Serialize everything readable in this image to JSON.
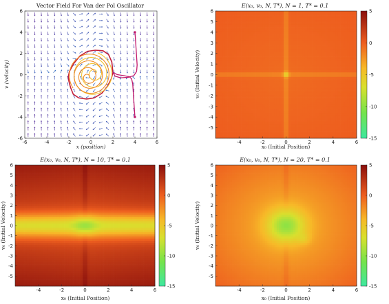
{
  "chart_data": [
    {
      "type": "vector-field",
      "title": "Vector Field For Van der Pol Oscillator",
      "xlabel": "x (position)",
      "ylabel": "v (velocity)",
      "xlim": [
        -6,
        6
      ],
      "ylim": [
        -6,
        6
      ],
      "xticks": [
        -6,
        -4,
        -2,
        0,
        2,
        4,
        6
      ],
      "yticks": [
        -6,
        -4,
        -2,
        0,
        2,
        4,
        6
      ],
      "grid": false,
      "limit_cycle": {
        "x": [
          2.0,
          1.9,
          1.6,
          1.1,
          0.4,
          -0.3,
          -1.0,
          -1.55,
          -1.95,
          -2.05,
          -2.0,
          -1.85,
          -1.6,
          -1.1,
          -0.4,
          0.3,
          1.0,
          1.5,
          1.85,
          2.0
        ],
        "y": [
          0.2,
          1.2,
          1.9,
          2.25,
          2.3,
          2.2,
          1.75,
          1.05,
          0.3,
          -0.2,
          -0.6,
          -1.2,
          -1.85,
          -2.2,
          -2.3,
          -2.2,
          -1.75,
          -1.1,
          -0.4,
          0.2
        ]
      },
      "spirals": [
        {
          "color": "#f2c230",
          "x0": 0.35,
          "y0": 0.15,
          "turns": 3.2
        },
        {
          "color": "#f08a24",
          "x0": -0.3,
          "y0": -0.3,
          "turns": 3.6
        }
      ],
      "trajectories": [
        {
          "color": "#c2186b",
          "x": [
            4.0,
            4.05,
            4.1,
            4.15,
            4.2,
            4.15,
            3.9,
            3.4,
            2.7,
            2.2,
            2.0
          ],
          "y": [
            4.0,
            3.3,
            2.5,
            1.7,
            0.9,
            0.3,
            -0.1,
            -0.25,
            -0.3,
            -0.15,
            0.2
          ]
        },
        {
          "color": "#c2186b",
          "x": [
            4.0,
            3.95,
            3.9,
            3.85,
            3.8,
            3.7,
            3.5,
            3.0,
            2.4,
            2.0
          ],
          "y": [
            -4.0,
            -3.3,
            -2.5,
            -1.7,
            -0.9,
            -0.4,
            -0.2,
            -0.1,
            0.0,
            0.2
          ]
        }
      ],
      "start_points": [
        {
          "x": 4.0,
          "y": 4.0
        },
        {
          "x": 4.0,
          "y": -4.0
        }
      ]
    },
    {
      "type": "heatmap",
      "title": "E(x₀, v₀, N, T*),    N = 1,    T* = 0.1",
      "xlabel": "x₀ (Initial Position)",
      "ylabel": "v₀ (Initial Velocity)",
      "xlim": [
        -6,
        6
      ],
      "ylim": [
        -6,
        6
      ],
      "xticks": [
        -4,
        -2,
        0,
        2,
        4,
        6
      ],
      "yticks": [
        -5,
        -4,
        -3,
        -2,
        -1,
        0,
        1,
        2,
        3,
        4,
        5,
        6
      ],
      "colorbar": {
        "min": -15,
        "max": 5,
        "ticks": [
          5,
          0,
          -5,
          -10,
          -15
        ]
      },
      "N": 1
    },
    {
      "type": "heatmap",
      "title": "E(x₀, v₀, N, T*),    N = 10,    T* = 0.1",
      "xlabel": "x₀ (Initial Position)",
      "ylabel": "v₀ (Initial Velocity)",
      "xlim": [
        -6,
        6
      ],
      "ylim": [
        -6,
        6
      ],
      "xticks": [
        -4,
        -2,
        0,
        2,
        4,
        6
      ],
      "yticks": [
        -5,
        -4,
        -3,
        -2,
        -1,
        0,
        1,
        2,
        3,
        4,
        5,
        6
      ],
      "colorbar": {
        "min": -15,
        "max": 5,
        "ticks": [
          5,
          0,
          -5,
          -10,
          -15
        ]
      },
      "N": 10
    },
    {
      "type": "heatmap",
      "title": "E(x₀, v₀, N, T*),    N = 20,    T* = 0.1",
      "xlabel": "x₀ (Initial Position)",
      "ylabel": "v₀ (Initial Velocity)",
      "xlim": [
        -6,
        6
      ],
      "ylim": [
        -6,
        6
      ],
      "xticks": [
        -4,
        -2,
        0,
        2,
        4,
        6
      ],
      "yticks": [
        -5,
        -4,
        -3,
        -2,
        -1,
        0,
        1,
        2,
        3,
        4,
        5,
        6
      ],
      "colorbar": {
        "min": -15,
        "max": 5,
        "ticks": [
          5,
          0,
          -5,
          -10,
          -15
        ]
      },
      "N": 20
    }
  ]
}
